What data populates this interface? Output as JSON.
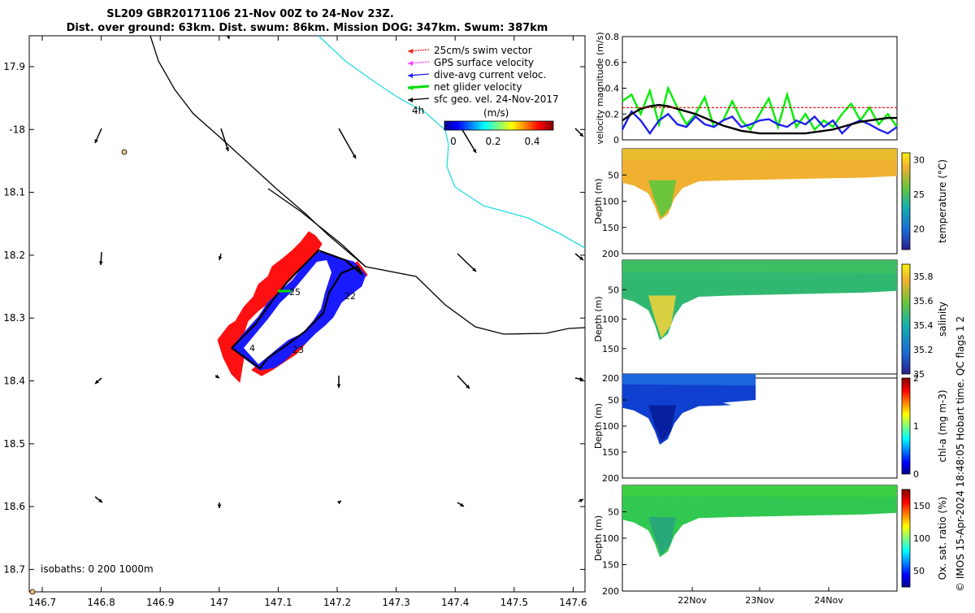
{
  "title_lines": [
    "SL209 GBR20171106 21-Nov 00Z to 24-Nov 23Z.",
    "Dist. over ground: 63km. Dist. swum: 86km. Mission DOG: 347km. Swum: 387km"
  ],
  "side_label": "© IMOS 15-Apr-2024 18:48:05 Hobart time. QC flags 1  2",
  "map": {
    "lon_ticks": [
      "146.7",
      "146.8",
      "146.9",
      "147",
      "147.1",
      "147.2",
      "147.3",
      "147.4",
      "147.5",
      "147.6"
    ],
    "lat_ticks": [
      "17.9",
      "-18",
      "18.1",
      "18.2",
      "18.3",
      "18.4",
      "18.5",
      "18.6",
      "18.7"
    ],
    "isobaths_label": "isobaths: 0   200  1000m",
    "legend": [
      {
        "label": "25cm/s swim vector",
        "color": "#ff2020"
      },
      {
        "label": "GPS surface velocity",
        "color": "#ff40ff"
      },
      {
        "label": "dive-avg current veloc.",
        "color": "#2020ff"
      },
      {
        "label": "net glider velocity",
        "color": "#00dd00"
      },
      {
        "label": "sfc geo. vel. 24-Nov-2017",
        "color": "#000000"
      }
    ],
    "legend_extra": "4h",
    "colorbar_unit": "(m/s)",
    "colorbar_ticks": [
      "0",
      "0.2",
      "0.4"
    ],
    "track_labels": [
      "25",
      "22",
      "4",
      "23"
    ]
  },
  "chart_data": [
    {
      "type": "line",
      "ylabel": "velocity magnitude (m/s)",
      "ylim": [
        0,
        0.8
      ],
      "yticks": [
        "0",
        "0.2",
        "0.4",
        "0.6",
        "0.8"
      ],
      "series": [
        {
          "color": "#00ee00",
          "values": [
            0.3,
            0.35,
            0.2,
            0.38,
            0.12,
            0.4,
            0.25,
            0.12,
            0.2,
            0.33,
            0.1,
            0.15,
            0.3,
            0.15,
            0.08,
            0.2,
            0.32,
            0.1,
            0.35,
            0.1,
            0.2,
            0.08,
            0.15,
            0.1,
            0.2,
            0.28,
            0.15,
            0.25,
            0.12,
            0.2,
            0.1
          ]
        },
        {
          "color": "#2020ee",
          "values": [
            0.08,
            0.22,
            0.15,
            0.05,
            0.15,
            0.2,
            0.12,
            0.1,
            0.18,
            0.12,
            0.1,
            0.15,
            0.18,
            0.1,
            0.12,
            0.15,
            0.16,
            0.12,
            0.1,
            0.15,
            0.12,
            0.18,
            0.1,
            0.15,
            0.05,
            0.12,
            0.15,
            0.12,
            0.08,
            0.05,
            0.1
          ]
        },
        {
          "color": "#000000",
          "values": [
            0.15,
            0.2,
            0.24,
            0.26,
            0.27,
            0.26,
            0.24,
            0.22,
            0.2,
            0.17,
            0.14,
            0.11,
            0.09,
            0.07,
            0.06,
            0.05,
            0.05,
            0.05,
            0.05,
            0.05,
            0.05,
            0.06,
            0.07,
            0.08,
            0.1,
            0.12,
            0.14,
            0.15,
            0.16,
            0.17,
            0.17
          ]
        },
        {
          "color": "#dd0000",
          "values": [
            0.25,
            0.25,
            0.25,
            0.25,
            0.25,
            0.25,
            0.25,
            0.25,
            0.25,
            0.25,
            0.25,
            0.25,
            0.25,
            0.25,
            0.25,
            0.25,
            0.25,
            0.25,
            0.25,
            0.25,
            0.25,
            0.25,
            0.25,
            0.25,
            0.25,
            0.25,
            0.25,
            0.25,
            0.25,
            0.25,
            0.25
          ]
        }
      ]
    },
    {
      "type": "heatmap",
      "ylabel": "Depth (m)",
      "yticks": [
        "50",
        "100",
        "150",
        "200"
      ],
      "cbar_label": "temperature (°C)",
      "cbar_ticks": [
        "30",
        "25",
        "20"
      ],
      "cbar_range": [
        17,
        31
      ]
    },
    {
      "type": "heatmap",
      "ylabel": "Depth (m)",
      "yticks": [
        "50",
        "100",
        "150",
        "200"
      ],
      "cbar_label": "salinity",
      "cbar_ticks": [
        "35.8",
        "35.6",
        "35.4",
        "35.2",
        "35"
      ],
      "cbar_range": [
        35,
        35.9
      ]
    },
    {
      "type": "heatmap",
      "ylabel": "Depth (m)",
      "yticks": [
        "50",
        "100",
        "150",
        "200"
      ],
      "cbar_label": "chl-a (mg m-3)",
      "cbar_ticks": [
        "2",
        "1",
        "0"
      ],
      "cbar_range": [
        0,
        2
      ]
    },
    {
      "type": "heatmap",
      "ylabel": "Depth (m)",
      "yticks": [
        "50",
        "100",
        "150",
        "200"
      ],
      "cbar_label": "Ox. sat. ratio (%)",
      "cbar_ticks": [
        "150",
        "100",
        "50"
      ],
      "cbar_range": [
        25,
        175
      ],
      "xticks": [
        "22Nov",
        "23Nov",
        "24Nov"
      ]
    }
  ]
}
